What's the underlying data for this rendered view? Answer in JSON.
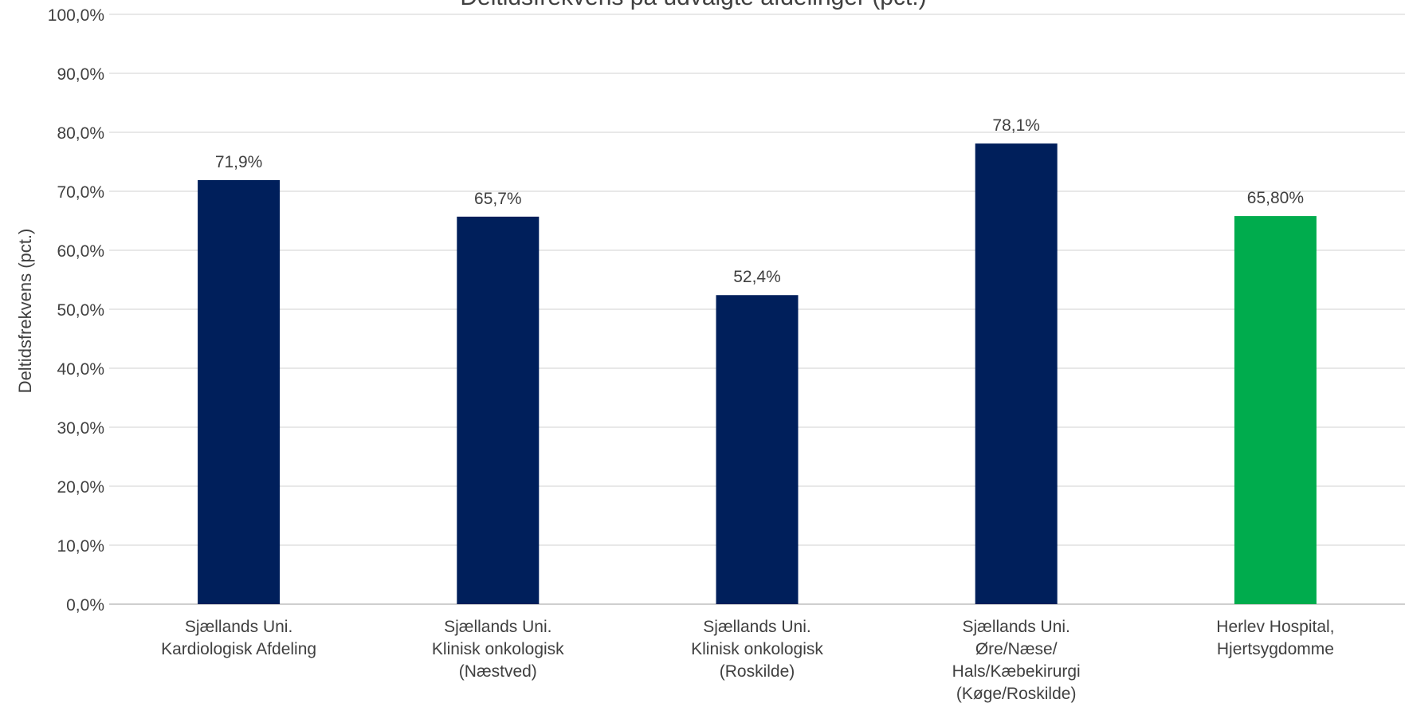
{
  "chart_data": {
    "type": "bar",
    "title": "Deltidsfrekvens på udvalgte afdelinger (pct.)",
    "ylabel": "Deltidsfrekvens (pct.)",
    "xlabel": "",
    "ylim": [
      0,
      100
    ],
    "y_ticks": [
      "0,0%",
      "10,0%",
      "20,0%",
      "30,0%",
      "40,0%",
      "50,0%",
      "60,0%",
      "70,0%",
      "80,0%",
      "90,0%",
      "100,0%"
    ],
    "grid": true,
    "categories": [
      [
        "Sjællands Uni.",
        "Kardiologisk Afdeling"
      ],
      [
        "Sjællands Uni.",
        "Klinisk onkologisk",
        "(Næstved)"
      ],
      [
        "Sjællands Uni.",
        "Klinisk onkologisk",
        "(Roskilde)"
      ],
      [
        "Sjællands Uni.",
        "Øre/Næse/",
        "Hals/Kæbekirurgi",
        "(Køge/Roskilde)"
      ],
      [
        "Herlev Hospital,",
        "Hjertsygdomme"
      ]
    ],
    "values": [
      71.9,
      65.7,
      52.4,
      78.1,
      65.8
    ],
    "data_labels": [
      "71,9%",
      "65,7%",
      "52,4%",
      "78,1%",
      "65,80%"
    ],
    "bar_colors": [
      "#001f5b",
      "#001f5b",
      "#001f5b",
      "#001f5b",
      "#00ac4d"
    ]
  }
}
